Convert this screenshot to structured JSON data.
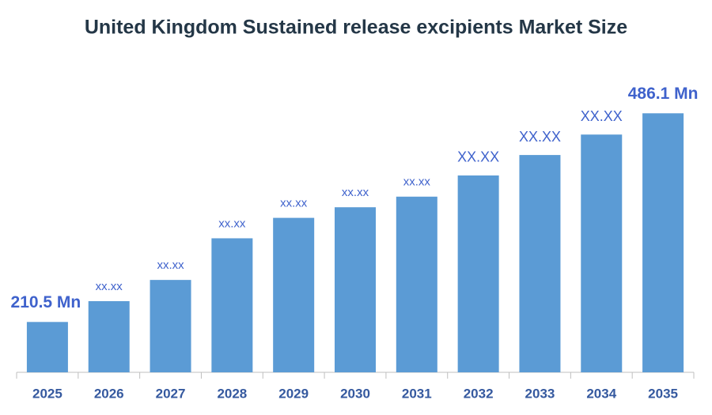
{
  "chart_data": {
    "type": "bar",
    "title": "United Kingdom Sustained release excipients Market Size",
    "categories": [
      "2025",
      "2026",
      "2027",
      "2028",
      "2029",
      "2030",
      "2031",
      "2032",
      "2033",
      "2034",
      "2035"
    ],
    "values": [
      210.5,
      238,
      266,
      321,
      348,
      362,
      376,
      404,
      431,
      458,
      486.1
    ],
    "value_labels": [
      "210.5 Mn",
      "xx.xx",
      "xx.xx",
      "xx.xx",
      "xx.xx",
      "xx.xx",
      "xx.xx",
      "XX.XX",
      "XX.XX",
      "XX.XX",
      "486.1 Mn"
    ],
    "color": "#5b9bd5",
    "ylim": [
      144,
      500
    ]
  }
}
